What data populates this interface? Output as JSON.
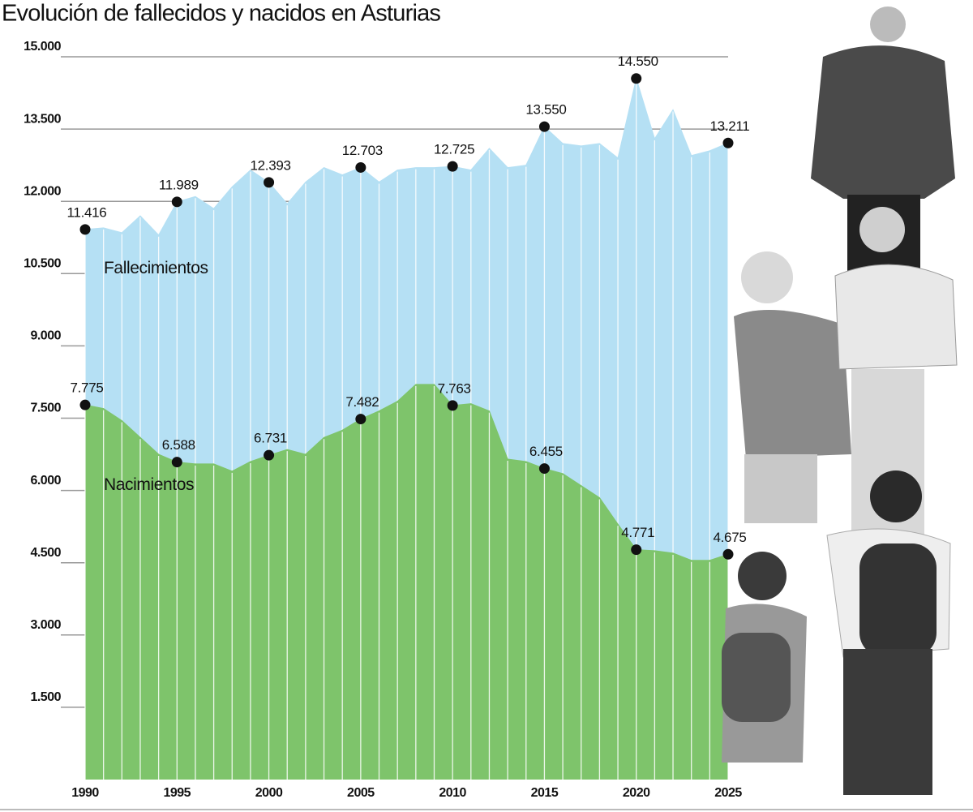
{
  "chart_data": {
    "type": "area",
    "title": "Evolución de fallecidos y nacidos en Asturias",
    "x": [
      1990,
      1991,
      1992,
      1993,
      1994,
      1995,
      1996,
      1997,
      1998,
      1999,
      2000,
      2001,
      2002,
      2003,
      2004,
      2005,
      2006,
      2007,
      2008,
      2009,
      2010,
      2011,
      2012,
      2013,
      2014,
      2015,
      2016,
      2017,
      2018,
      2019,
      2020,
      2021,
      2022,
      2023,
      2024,
      2025
    ],
    "xlim": [
      1990,
      2025
    ],
    "xticks": [
      1990,
      1995,
      2000,
      2005,
      2010,
      2015,
      2020,
      2025
    ],
    "ylim": [
      0,
      15000
    ],
    "yticks": [
      {
        "value": 1500,
        "label": "1.500"
      },
      {
        "value": 3000,
        "label": "3.000"
      },
      {
        "value": 4500,
        "label": "4.500"
      },
      {
        "value": 6000,
        "label": "6.000"
      },
      {
        "value": 7500,
        "label": "7.500"
      },
      {
        "value": 9000,
        "label": "9.000"
      },
      {
        "value": 10500,
        "label": "10.500"
      },
      {
        "value": 12000,
        "label": "12.000"
      },
      {
        "value": 13500,
        "label": "13.500"
      },
      {
        "value": 15000,
        "label": "15.000"
      }
    ],
    "grid": true,
    "series": [
      {
        "name": "Fallecimientos",
        "color": "#b5e0f4",
        "values": [
          11416,
          11450,
          11350,
          11700,
          11300,
          11989,
          12100,
          11850,
          12300,
          12650,
          12393,
          11950,
          12400,
          12700,
          12550,
          12703,
          12400,
          12650,
          12700,
          12700,
          12725,
          12650,
          13100,
          12700,
          12750,
          13550,
          13200,
          13150,
          13200,
          12900,
          14550,
          13300,
          13900,
          12950,
          13050,
          13211
        ],
        "value_labels": [
          "11.416",
          null,
          null,
          null,
          null,
          "11.989",
          null,
          null,
          null,
          null,
          "12.393",
          null,
          null,
          null,
          null,
          "12.703",
          null,
          null,
          null,
          null,
          "12.725",
          null,
          null,
          null,
          null,
          "13.550",
          null,
          null,
          null,
          null,
          "14.550",
          null,
          null,
          null,
          null,
          "13.211"
        ]
      },
      {
        "name": "Nacimientos",
        "color": "#7ec46b",
        "values": [
          7775,
          7700,
          7450,
          7100,
          6750,
          6588,
          6550,
          6550,
          6400,
          6600,
          6731,
          6850,
          6750,
          7100,
          7250,
          7482,
          7650,
          7850,
          8200,
          8200,
          7763,
          7800,
          7650,
          6650,
          6600,
          6455,
          6350,
          6100,
          5850,
          5300,
          4771,
          4750,
          4700,
          4550,
          4550,
          4675
        ],
        "value_labels": [
          "7.775",
          null,
          null,
          null,
          null,
          "6.588",
          null,
          null,
          null,
          null,
          "6.731",
          null,
          null,
          null,
          null,
          "7.482",
          null,
          null,
          null,
          null,
          "7.763",
          null,
          null,
          null,
          null,
          "6.455",
          null,
          null,
          null,
          null,
          "4.771",
          null,
          null,
          null,
          null,
          "4.675"
        ]
      }
    ]
  }
}
